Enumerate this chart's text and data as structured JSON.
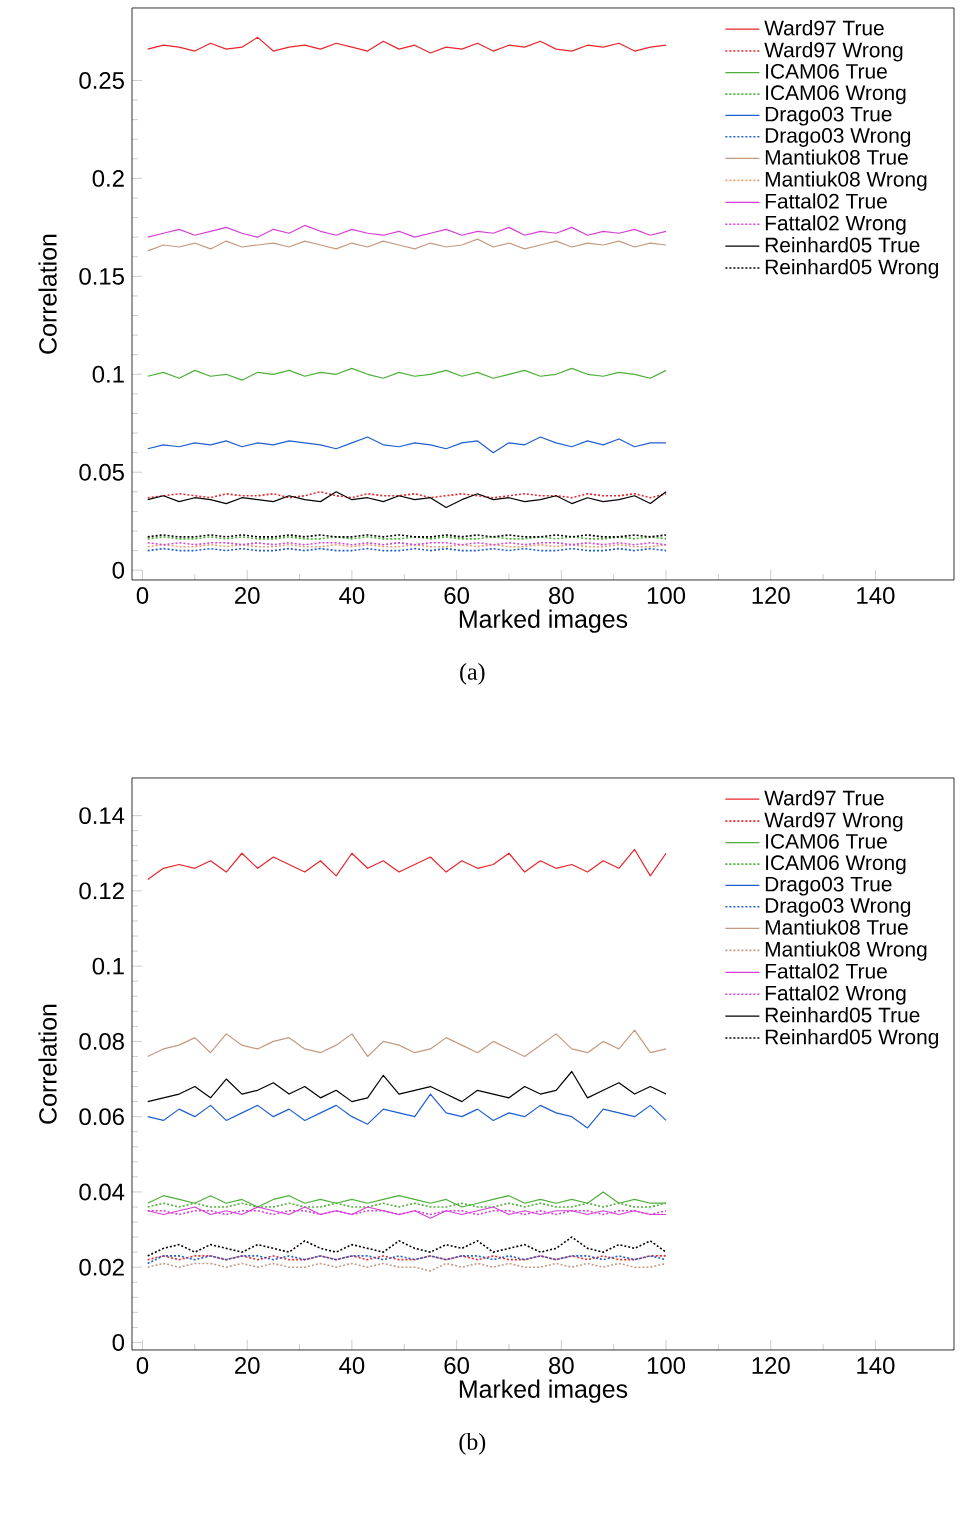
{
  "chart_data": [
    {
      "type": "line",
      "title": "(a)",
      "xlabel": "Marked images",
      "ylabel": "Correlation",
      "legend": "top right",
      "xlim": [
        -2,
        155
      ],
      "ylim": [
        -0.005,
        0.287
      ],
      "xticks": [
        0,
        20,
        40,
        60,
        80,
        100,
        120,
        140
      ],
      "yticks": [
        0,
        0.05,
        0.1,
        0.15,
        0.2,
        0.25
      ],
      "x": [
        1,
        4,
        7,
        10,
        13,
        16,
        19,
        22,
        25,
        28,
        31,
        34,
        37,
        40,
        43,
        46,
        49,
        52,
        55,
        58,
        61,
        64,
        67,
        70,
        73,
        76,
        79,
        82,
        85,
        88,
        91,
        94,
        97,
        100
      ],
      "series": [
        {
          "name": "Ward97 True",
          "color": "#e8262a",
          "line_style": "solid",
          "values": [
            0.266,
            0.268,
            0.267,
            0.265,
            0.269,
            0.266,
            0.267,
            0.272,
            0.265,
            0.267,
            0.268,
            0.266,
            0.269,
            0.267,
            0.265,
            0.27,
            0.266,
            0.268,
            0.264,
            0.267,
            0.266,
            0.269,
            0.265,
            0.268,
            0.267,
            0.27,
            0.266,
            0.265,
            0.268,
            0.267,
            0.269,
            0.265,
            0.267,
            0.268
          ]
        },
        {
          "name": "Ward97 Wrong",
          "color": "#e8262a",
          "line_style": "dotted",
          "values": [
            0.037,
            0.038,
            0.039,
            0.038,
            0.037,
            0.039,
            0.038,
            0.038,
            0.039,
            0.037,
            0.038,
            0.04,
            0.038,
            0.037,
            0.039,
            0.038,
            0.038,
            0.039,
            0.037,
            0.038,
            0.039,
            0.038,
            0.037,
            0.038,
            0.039,
            0.038,
            0.038,
            0.037,
            0.039,
            0.038,
            0.038,
            0.039,
            0.037,
            0.039
          ]
        },
        {
          "name": "ICAM06 True",
          "color": "#4daf3a",
          "line_style": "solid",
          "values": [
            0.099,
            0.101,
            0.098,
            0.102,
            0.099,
            0.1,
            0.097,
            0.101,
            0.1,
            0.102,
            0.099,
            0.101,
            0.1,
            0.103,
            0.1,
            0.098,
            0.101,
            0.099,
            0.1,
            0.102,
            0.099,
            0.101,
            0.098,
            0.1,
            0.102,
            0.099,
            0.1,
            0.103,
            0.1,
            0.099,
            0.101,
            0.1,
            0.098,
            0.102
          ]
        },
        {
          "name": "ICAM06 Wrong",
          "color": "#4daf3a",
          "line_style": "dotted",
          "values": [
            0.016,
            0.017,
            0.016,
            0.016,
            0.017,
            0.016,
            0.017,
            0.016,
            0.016,
            0.017,
            0.016,
            0.016,
            0.017,
            0.016,
            0.017,
            0.016,
            0.016,
            0.017,
            0.016,
            0.017,
            0.016,
            0.016,
            0.017,
            0.016,
            0.016,
            0.017,
            0.016,
            0.017,
            0.016,
            0.016,
            0.017,
            0.016,
            0.017,
            0.016
          ]
        },
        {
          "name": "Drago03 True",
          "color": "#1f5fd0",
          "line_style": "solid",
          "values": [
            0.062,
            0.064,
            0.063,
            0.065,
            0.064,
            0.066,
            0.063,
            0.065,
            0.064,
            0.066,
            0.065,
            0.064,
            0.062,
            0.065,
            0.068,
            0.064,
            0.063,
            0.065,
            0.064,
            0.062,
            0.065,
            0.066,
            0.06,
            0.065,
            0.064,
            0.068,
            0.065,
            0.063,
            0.066,
            0.064,
            0.067,
            0.063,
            0.065,
            0.065
          ]
        },
        {
          "name": "Drago03 Wrong",
          "color": "#1f5fd0",
          "line_style": "dotted",
          "values": [
            0.01,
            0.011,
            0.01,
            0.01,
            0.011,
            0.01,
            0.011,
            0.01,
            0.01,
            0.011,
            0.01,
            0.011,
            0.01,
            0.01,
            0.011,
            0.01,
            0.01,
            0.011,
            0.01,
            0.011,
            0.01,
            0.01,
            0.011,
            0.01,
            0.011,
            0.01,
            0.01,
            0.011,
            0.01,
            0.01,
            0.011,
            0.01,
            0.011,
            0.01
          ]
        },
        {
          "name": "Mantiuk08 True",
          "color": "#c49a80",
          "line_style": "solid",
          "values": [
            0.163,
            0.166,
            0.165,
            0.167,
            0.164,
            0.168,
            0.165,
            0.166,
            0.167,
            0.165,
            0.168,
            0.166,
            0.164,
            0.167,
            0.165,
            0.168,
            0.166,
            0.164,
            0.167,
            0.165,
            0.166,
            0.169,
            0.165,
            0.167,
            0.164,
            0.166,
            0.168,
            0.165,
            0.167,
            0.166,
            0.168,
            0.165,
            0.167,
            0.166
          ]
        },
        {
          "name": "Mantiuk08 Wrong",
          "color": "#e8a070",
          "line_style": "dotted",
          "values": [
            0.012,
            0.013,
            0.012,
            0.012,
            0.013,
            0.012,
            0.013,
            0.012,
            0.012,
            0.013,
            0.012,
            0.012,
            0.013,
            0.012,
            0.013,
            0.012,
            0.012,
            0.013,
            0.012,
            0.012,
            0.013,
            0.012,
            0.013,
            0.012,
            0.012,
            0.013,
            0.012,
            0.013,
            0.012,
            0.012,
            0.013,
            0.012,
            0.012,
            0.013
          ]
        },
        {
          "name": "Fattal02 True",
          "color": "#d63fd6",
          "line_style": "solid",
          "values": [
            0.17,
            0.172,
            0.174,
            0.171,
            0.173,
            0.175,
            0.172,
            0.17,
            0.174,
            0.172,
            0.176,
            0.173,
            0.171,
            0.174,
            0.172,
            0.171,
            0.173,
            0.17,
            0.172,
            0.174,
            0.171,
            0.173,
            0.172,
            0.175,
            0.171,
            0.173,
            0.172,
            0.175,
            0.171,
            0.173,
            0.172,
            0.174,
            0.171,
            0.173
          ]
        },
        {
          "name": "Fattal02 Wrong",
          "color": "#d63fd6",
          "line_style": "dotted",
          "values": [
            0.014,
            0.013,
            0.014,
            0.013,
            0.014,
            0.014,
            0.013,
            0.014,
            0.013,
            0.014,
            0.013,
            0.014,
            0.014,
            0.013,
            0.014,
            0.013,
            0.014,
            0.013,
            0.014,
            0.014,
            0.013,
            0.014,
            0.013,
            0.014,
            0.013,
            0.014,
            0.014,
            0.013,
            0.014,
            0.013,
            0.014,
            0.013,
            0.014,
            0.013
          ]
        },
        {
          "name": "Reinhard05 True",
          "color": "#000000",
          "line_style": "solid",
          "values": [
            0.036,
            0.038,
            0.035,
            0.037,
            0.036,
            0.034,
            0.037,
            0.036,
            0.035,
            0.038,
            0.036,
            0.035,
            0.04,
            0.036,
            0.037,
            0.035,
            0.038,
            0.036,
            0.037,
            0.032,
            0.036,
            0.039,
            0.036,
            0.037,
            0.035,
            0.036,
            0.038,
            0.034,
            0.037,
            0.035,
            0.036,
            0.038,
            0.034,
            0.04
          ]
        },
        {
          "name": "Reinhard05 Wrong",
          "color": "#000000",
          "line_style": "dotted",
          "values": [
            0.017,
            0.018,
            0.017,
            0.017,
            0.018,
            0.017,
            0.018,
            0.017,
            0.017,
            0.018,
            0.017,
            0.018,
            0.017,
            0.017,
            0.018,
            0.017,
            0.018,
            0.017,
            0.017,
            0.018,
            0.017,
            0.018,
            0.017,
            0.018,
            0.017,
            0.017,
            0.018,
            0.017,
            0.018,
            0.017,
            0.017,
            0.018,
            0.017,
            0.018
          ]
        }
      ]
    },
    {
      "type": "line",
      "title": "(b)",
      "xlabel": "Marked images",
      "ylabel": "Correlation",
      "legend": "top right",
      "xlim": [
        -2,
        155
      ],
      "ylim": [
        -0.002,
        0.15
      ],
      "xticks": [
        0,
        20,
        40,
        60,
        80,
        100,
        120,
        140
      ],
      "yticks": [
        0,
        0.02,
        0.04,
        0.06,
        0.08,
        0.1,
        0.12,
        0.14
      ],
      "x": [
        1,
        4,
        7,
        10,
        13,
        16,
        19,
        22,
        25,
        28,
        31,
        34,
        37,
        40,
        43,
        46,
        49,
        52,
        55,
        58,
        61,
        64,
        67,
        70,
        73,
        76,
        79,
        82,
        85,
        88,
        91,
        94,
        97,
        100
      ],
      "series": [
        {
          "name": "Ward97 True",
          "color": "#e8262a",
          "line_style": "solid",
          "values": [
            0.123,
            0.126,
            0.127,
            0.126,
            0.128,
            0.125,
            0.13,
            0.126,
            0.129,
            0.127,
            0.125,
            0.128,
            0.124,
            0.13,
            0.126,
            0.128,
            0.125,
            0.127,
            0.129,
            0.125,
            0.128,
            0.126,
            0.127,
            0.13,
            0.125,
            0.128,
            0.126,
            0.127,
            0.125,
            0.128,
            0.126,
            0.131,
            0.124,
            0.13
          ]
        },
        {
          "name": "Ward97 Wrong",
          "color": "#e8262a",
          "line_style": "dotted",
          "values": [
            0.022,
            0.023,
            0.022,
            0.023,
            0.023,
            0.022,
            0.023,
            0.022,
            0.023,
            0.022,
            0.022,
            0.023,
            0.022,
            0.023,
            0.022,
            0.023,
            0.022,
            0.022,
            0.023,
            0.022,
            0.023,
            0.022,
            0.023,
            0.022,
            0.022,
            0.023,
            0.022,
            0.023,
            0.022,
            0.023,
            0.022,
            0.022,
            0.023,
            0.023
          ]
        },
        {
          "name": "ICAM06 True",
          "color": "#4daf3a",
          "line_style": "solid",
          "values": [
            0.037,
            0.039,
            0.038,
            0.037,
            0.039,
            0.037,
            0.038,
            0.036,
            0.038,
            0.039,
            0.037,
            0.038,
            0.037,
            0.038,
            0.037,
            0.038,
            0.039,
            0.038,
            0.037,
            0.038,
            0.036,
            0.037,
            0.038,
            0.039,
            0.037,
            0.038,
            0.037,
            0.038,
            0.037,
            0.04,
            0.037,
            0.038,
            0.037,
            0.037
          ]
        },
        {
          "name": "ICAM06 Wrong",
          "color": "#4daf3a",
          "line_style": "dotted",
          "values": [
            0.036,
            0.037,
            0.036,
            0.037,
            0.036,
            0.036,
            0.037,
            0.036,
            0.036,
            0.037,
            0.036,
            0.036,
            0.037,
            0.036,
            0.036,
            0.037,
            0.036,
            0.037,
            0.036,
            0.036,
            0.037,
            0.036,
            0.036,
            0.037,
            0.036,
            0.037,
            0.036,
            0.036,
            0.037,
            0.036,
            0.037,
            0.036,
            0.036,
            0.037
          ]
        },
        {
          "name": "Drago03 True",
          "color": "#1f5fd0",
          "line_style": "solid",
          "values": [
            0.06,
            0.059,
            0.062,
            0.06,
            0.063,
            0.059,
            0.061,
            0.063,
            0.06,
            0.062,
            0.059,
            0.061,
            0.063,
            0.06,
            0.058,
            0.062,
            0.061,
            0.06,
            0.066,
            0.061,
            0.06,
            0.062,
            0.059,
            0.061,
            0.06,
            0.063,
            0.061,
            0.06,
            0.057,
            0.062,
            0.061,
            0.06,
            0.063,
            0.059
          ]
        },
        {
          "name": "Drago03 Wrong",
          "color": "#1f5fd0",
          "line_style": "dotted",
          "values": [
            0.021,
            0.023,
            0.023,
            0.022,
            0.023,
            0.022,
            0.023,
            0.023,
            0.022,
            0.023,
            0.022,
            0.023,
            0.022,
            0.023,
            0.023,
            0.022,
            0.023,
            0.022,
            0.023,
            0.022,
            0.023,
            0.023,
            0.022,
            0.023,
            0.022,
            0.023,
            0.022,
            0.023,
            0.023,
            0.022,
            0.023,
            0.022,
            0.023,
            0.022
          ]
        },
        {
          "name": "Mantiuk08 True",
          "color": "#c49a80",
          "line_style": "solid",
          "values": [
            0.076,
            0.078,
            0.079,
            0.081,
            0.077,
            0.082,
            0.079,
            0.078,
            0.08,
            0.081,
            0.078,
            0.077,
            0.079,
            0.082,
            0.076,
            0.08,
            0.079,
            0.077,
            0.078,
            0.081,
            0.079,
            0.077,
            0.08,
            0.078,
            0.076,
            0.079,
            0.082,
            0.078,
            0.077,
            0.08,
            0.078,
            0.083,
            0.077,
            0.078
          ]
        },
        {
          "name": "Mantiuk08 Wrong",
          "color": "#c49a80",
          "line_style": "dotted",
          "values": [
            0.02,
            0.021,
            0.02,
            0.021,
            0.021,
            0.02,
            0.021,
            0.02,
            0.021,
            0.02,
            0.02,
            0.021,
            0.02,
            0.021,
            0.02,
            0.021,
            0.02,
            0.02,
            0.019,
            0.021,
            0.02,
            0.021,
            0.02,
            0.021,
            0.02,
            0.02,
            0.021,
            0.02,
            0.021,
            0.02,
            0.021,
            0.02,
            0.02,
            0.021
          ]
        },
        {
          "name": "Fattal02 True",
          "color": "#d63fd6",
          "line_style": "solid",
          "values": [
            0.035,
            0.034,
            0.035,
            0.036,
            0.034,
            0.035,
            0.034,
            0.036,
            0.035,
            0.034,
            0.036,
            0.034,
            0.035,
            0.034,
            0.036,
            0.035,
            0.034,
            0.035,
            0.033,
            0.035,
            0.034,
            0.035,
            0.036,
            0.034,
            0.035,
            0.034,
            0.035,
            0.035,
            0.034,
            0.035,
            0.034,
            0.035,
            0.034,
            0.034
          ]
        },
        {
          "name": "Fattal02 Wrong",
          "color": "#d63fd6",
          "line_style": "dotted",
          "values": [
            0.035,
            0.035,
            0.034,
            0.035,
            0.035,
            0.034,
            0.035,
            0.035,
            0.034,
            0.035,
            0.035,
            0.034,
            0.035,
            0.034,
            0.035,
            0.035,
            0.034,
            0.035,
            0.034,
            0.035,
            0.035,
            0.034,
            0.035,
            0.035,
            0.034,
            0.035,
            0.034,
            0.035,
            0.035,
            0.034,
            0.035,
            0.035,
            0.034,
            0.035
          ]
        },
        {
          "name": "Reinhard05 True",
          "color": "#000000",
          "line_style": "solid",
          "values": [
            0.064,
            0.065,
            0.066,
            0.068,
            0.065,
            0.07,
            0.066,
            0.067,
            0.069,
            0.066,
            0.068,
            0.065,
            0.067,
            0.064,
            0.065,
            0.071,
            0.066,
            0.067,
            0.068,
            0.066,
            0.064,
            0.067,
            0.066,
            0.065,
            0.068,
            0.066,
            0.067,
            0.072,
            0.065,
            0.067,
            0.069,
            0.066,
            0.068,
            0.066
          ]
        },
        {
          "name": "Reinhard05 Wrong",
          "color": "#000000",
          "line_style": "dotted",
          "values": [
            0.023,
            0.025,
            0.026,
            0.024,
            0.026,
            0.025,
            0.024,
            0.026,
            0.025,
            0.024,
            0.027,
            0.025,
            0.024,
            0.026,
            0.025,
            0.024,
            0.027,
            0.025,
            0.024,
            0.026,
            0.025,
            0.027,
            0.024,
            0.025,
            0.026,
            0.024,
            0.025,
            0.028,
            0.025,
            0.024,
            0.026,
            0.025,
            0.027,
            0.024
          ]
        }
      ]
    }
  ]
}
